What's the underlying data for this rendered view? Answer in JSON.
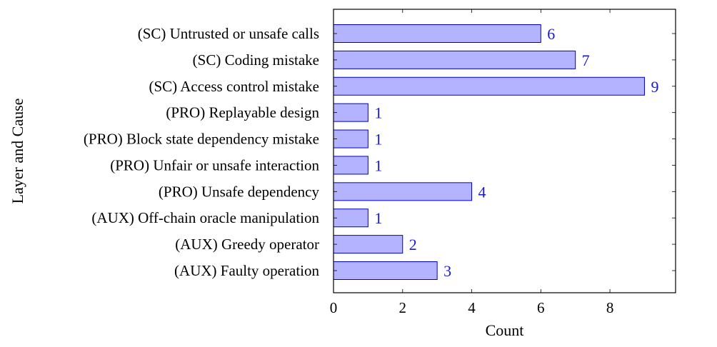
{
  "chart_data": {
    "type": "bar",
    "orientation": "horizontal",
    "xlabel": "Count",
    "ylabel": "Layer and Cause",
    "xlim": [
      0,
      9.9
    ],
    "xticks": [
      0,
      2,
      4,
      6,
      8
    ],
    "grid": false,
    "categories": [
      "(SC) Untrusted or unsafe calls",
      "(SC) Coding mistake",
      "(SC) Access control mistake",
      "(PRO) Replayable design",
      "(PRO) Block state dependency mistake",
      "(PRO) Unfair or unsafe interaction",
      "(PRO) Unsafe dependency",
      "(AUX) Off-chain oracle manipulation",
      "(AUX) Greedy operator",
      "(AUX) Faulty operation"
    ],
    "values": [
      6,
      7,
      9,
      1,
      1,
      1,
      4,
      1,
      2,
      3
    ],
    "data_labels": true,
    "colors": {
      "bar_fill": "#b3b3ff",
      "bar_stroke": "#0000cc",
      "label": "#1a1acc",
      "axis": "#000000"
    }
  }
}
